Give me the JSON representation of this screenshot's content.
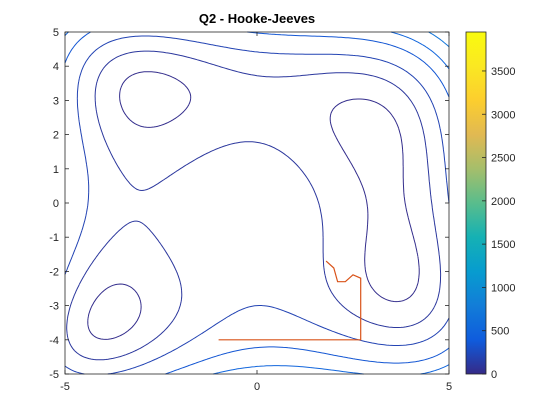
{
  "chart_data": {
    "type": "contour",
    "title": "Q2 - Hooke-Jeeves",
    "xlabel": "",
    "ylabel": "",
    "xlim": [
      -5,
      5
    ],
    "ylim": [
      -5,
      5
    ],
    "x_ticks": [
      -5,
      0,
      5
    ],
    "x_tick_labels": [
      "-5",
      "0",
      "5"
    ],
    "y_ticks": [
      5,
      4,
      3,
      2,
      1,
      0,
      -1,
      -2,
      -3,
      -4,
      -5
    ],
    "y_tick_labels": [
      "5",
      "4",
      "3",
      "2",
      "1",
      "0",
      "-1",
      "-2",
      "-3",
      "-4",
      "-5"
    ],
    "contour_levels": [
      25,
      100,
      200,
      350,
      500,
      700,
      950,
      1250,
      1600,
      2050,
      2700,
      3500
    ],
    "colormap": "parula",
    "colorbar": {
      "range": [
        0,
        3950
      ],
      "ticks": [
        0,
        500,
        1000,
        1500,
        2000,
        2500,
        3000,
        3500
      ],
      "tick_labels": [
        "0",
        "500",
        "1000",
        "1500",
        "2000",
        "2500",
        "3000",
        "3500"
      ],
      "placement": "right"
    },
    "search_path": {
      "name": "",
      "color": "#d95319",
      "x": [
        -1.0,
        2.7,
        2.7,
        2.5,
        2.3,
        2.1,
        2.0,
        1.8
      ],
      "y": [
        -4.0,
        -4.0,
        -2.2,
        -2.1,
        -2.3,
        -2.3,
        -1.9,
        -1.7
      ]
    }
  }
}
